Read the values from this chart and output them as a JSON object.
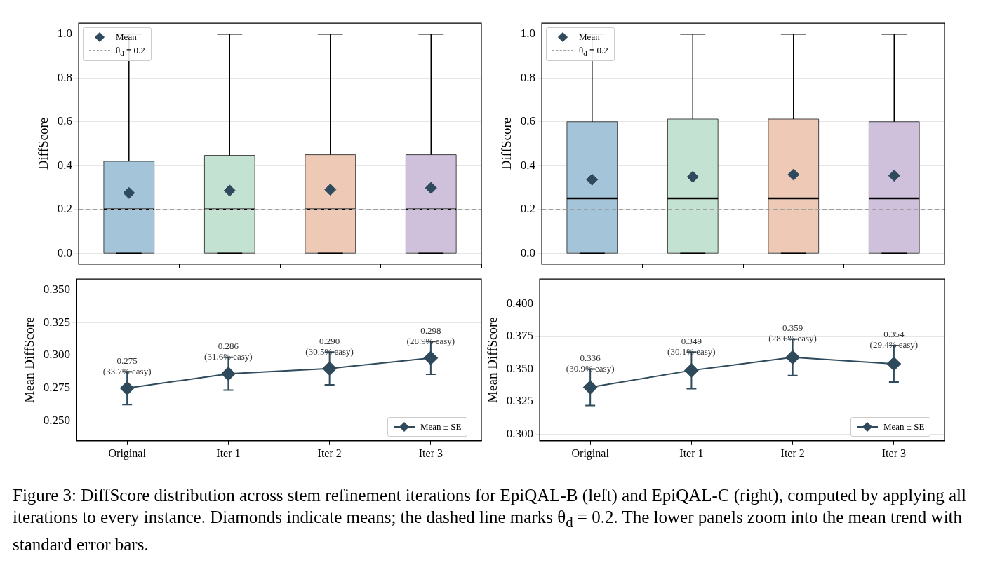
{
  "chart_data": [
    {
      "type": "box",
      "categories": [
        null,
        null,
        null,
        null
      ],
      "tick_labels": "y",
      "ylabel": "DiffScore",
      "ylim": [
        -0.05,
        1.05
      ],
      "yticks": [
        {
          "value": 0,
          "label": "0.0"
        },
        0.2,
        0.4,
        0.6,
        0.8,
        {
          "value": 1,
          "label": "1.0"
        }
      ],
      "grid": "y",
      "legend": "top left",
      "marker": "diamond",
      "colors": [
        "#a4c4da",
        "#c4e2d1",
        "#eecab6",
        "#cfc0dc"
      ],
      "boxes": [
        {
          "low": 0,
          "q1": 0,
          "median": 0.2,
          "q3": 0.42,
          "high": 1
        },
        {
          "low": 0,
          "q1": 0,
          "median": 0.2,
          "q3": 0.447,
          "high": 1
        },
        {
          "low": 0,
          "q1": 0,
          "median": 0.2,
          "q3": 0.45,
          "high": 1
        },
        {
          "low": 0,
          "q1": 0,
          "median": 0.2,
          "q3": 0.45,
          "high": 1
        }
      ],
      "series": [
        {
          "name": "Mean",
          "type": "scatter",
          "color": "#2e4a5c",
          "values": [
            0.275,
            0.286,
            0.29,
            0.298
          ]
        }
      ],
      "ref_lines": [
        {
          "axis": "y",
          "value": 0.2,
          "label": "θ$_{d}$ = 0.2",
          "color": "#a0a0a0",
          "line_style": "dashed"
        }
      ],
      "annotations": [
        "Figure 3: DiffScore distribution across stem refinement iterations for EpiQAL-B (left) and EpiQAL-C (right), computed by applying all iterations to every instance. Diamonds indicate means; the dashed line marks θ$_{d}$ = 0.2. The lower panels zoom into the mean trend with standard error bars."
      ]
    },
    {
      "type": "box",
      "categories": [
        null,
        null,
        null,
        null
      ],
      "tick_labels": "y",
      "ylabel": "DiffScore",
      "ylim": [
        -0.05,
        1.05
      ],
      "yticks": [
        {
          "value": 0,
          "label": "0.0"
        },
        0.2,
        0.4,
        0.6,
        0.8,
        {
          "value": 1,
          "label": "1.0"
        }
      ],
      "grid": "y",
      "legend": "top left",
      "marker": "diamond",
      "colors": [
        "#a4c4da",
        "#c4e2d1",
        "#eecab6",
        "#cfc0dc"
      ],
      "boxes": [
        {
          "low": 0,
          "q1": 0,
          "median": 0.25,
          "q3": 0.6,
          "high": 1
        },
        {
          "low": 0,
          "q1": 0,
          "median": 0.25,
          "q3": 0.612,
          "high": 1
        },
        {
          "low": 0,
          "q1": 0,
          "median": 0.25,
          "q3": 0.612,
          "high": 1
        },
        {
          "low": 0,
          "q1": 0,
          "median": 0.25,
          "q3": 0.6,
          "high": 1
        }
      ],
      "series": [
        {
          "name": "Mean",
          "type": "scatter",
          "color": "#2e4a5c",
          "values": [
            0.336,
            0.349,
            0.359,
            0.354
          ]
        }
      ],
      "ref_lines": [
        {
          "axis": "y",
          "value": 0.2,
          "label": "θ$_{d}$ = 0.2",
          "color": "#a0a0a0",
          "line_style": "dashed"
        }
      ]
    },
    {
      "type": "line",
      "categories": [
        "Original",
        "Iter 1",
        "Iter 2",
        "Iter 3"
      ],
      "ylabel": "Mean DiffScore",
      "ylim": [
        0.235,
        0.358
      ],
      "yticks": [
        {
          "value": 0.25,
          "label": "0.250"
        },
        {
          "value": 0.275,
          "label": "0.275"
        },
        {
          "value": 0.3,
          "label": "0.300"
        },
        {
          "value": 0.325,
          "label": "0.325"
        },
        {
          "value": 0.35,
          "label": "0.350"
        }
      ],
      "grid": "y",
      "legend": "bottom right",
      "marker": "diamond",
      "series": [
        {
          "name": "Mean ± SE",
          "color": "#2e4a5c",
          "values": [
            0.275,
            0.286,
            0.29,
            0.298
          ],
          "errors": [
            0.0125,
            0.0125,
            0.0125,
            0.0125
          ],
          "value_labels": [
            "0.275\n(33.7% easy)",
            "0.286\n(31.6% easy)",
            "0.290\n(30.5% easy)",
            "0.298\n(28.9% easy)"
          ]
        }
      ]
    },
    {
      "type": "line",
      "categories": [
        "Original",
        "Iter 1",
        "Iter 2",
        "Iter 3"
      ],
      "ylabel": "Mean DiffScore",
      "ylim": [
        0.295,
        0.419
      ],
      "yticks": [
        {
          "value": 0.3,
          "label": "0.300"
        },
        {
          "value": 0.325,
          "label": "0.325"
        },
        {
          "value": 0.35,
          "label": "0.350"
        },
        {
          "value": 0.375,
          "label": "0.375"
        },
        {
          "value": 0.4,
          "label": "0.400"
        }
      ],
      "grid": "y",
      "legend": "bottom right",
      "marker": "diamond",
      "series": [
        {
          "name": "Mean ± SE",
          "color": "#2e4a5c",
          "values": [
            0.336,
            0.349,
            0.359,
            0.354
          ],
          "errors": [
            0.014,
            0.014,
            0.014,
            0.014
          ],
          "value_labels": [
            "0.336\n(30.9% easy)",
            "0.349\n(30.1% easy)",
            "0.359\n(28.6% easy)",
            "0.354\n(29.4% easy)"
          ]
        }
      ]
    }
  ]
}
